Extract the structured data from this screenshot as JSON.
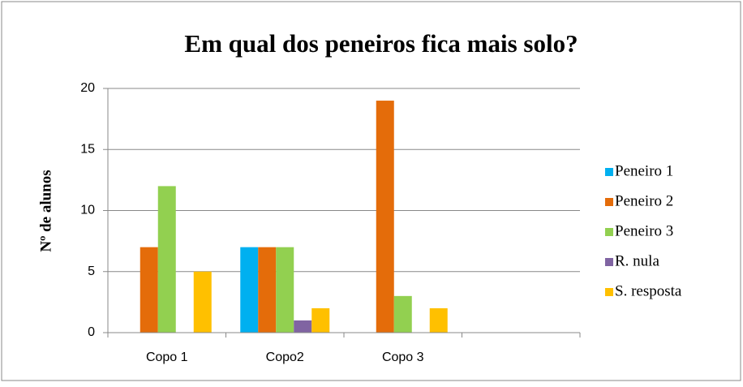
{
  "chart_data": {
    "type": "bar",
    "title": "Em qual dos peneiros fica mais solo?",
    "y_label": "Nº de alunos",
    "categories": [
      "Copo 1",
      "Copo2",
      "Copo 3",
      null
    ],
    "series": [
      {
        "name": "Peneiro 1",
        "color": "#00b0f0",
        "values": [
          0,
          7,
          0,
          null
        ]
      },
      {
        "name": "Peneiro 2",
        "color": "#e46c0a",
        "values": [
          7,
          7,
          19,
          null
        ]
      },
      {
        "name": "Peneiro 3",
        "color": "#92d050",
        "values": [
          12,
          7,
          3,
          null
        ]
      },
      {
        "name": "R. nula",
        "color": "#8064a2",
        "values": [
          0,
          1,
          0,
          null
        ]
      },
      {
        "name": "S. resposta",
        "color": "#ffc000",
        "values": [
          5,
          2,
          2,
          null
        ]
      }
    ],
    "ylim": [
      0,
      20
    ],
    "yticks": [
      0,
      5,
      10,
      15,
      20
    ],
    "grid": true,
    "legend": "right"
  }
}
